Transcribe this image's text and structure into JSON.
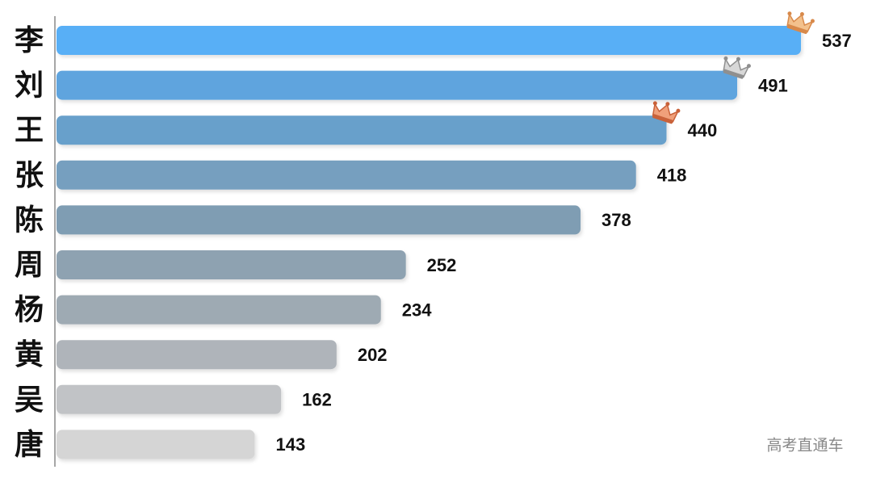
{
  "chart_data": {
    "type": "bar",
    "orientation": "horizontal",
    "categories": [
      "李",
      "刘",
      "王",
      "张",
      "陈",
      "周",
      "杨",
      "黄",
      "吴",
      "唐"
    ],
    "values": [
      537,
      491,
      440,
      418,
      378,
      252,
      234,
      202,
      162,
      143
    ],
    "colors": [
      "#58aff6",
      "#5fa4de",
      "#68a0cb",
      "#769fbf",
      "#7f9db3",
      "#8ea2b1",
      "#9eaab3",
      "#afb4ba",
      "#c1c3c6",
      "#d5d5d5"
    ],
    "annotation": "高考直通车"
  }
}
